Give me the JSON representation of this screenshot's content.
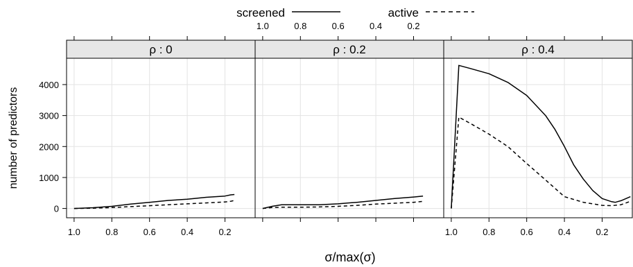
{
  "legend": {
    "position": "top",
    "items": [
      {
        "label": "screened",
        "line_style": "solid"
      },
      {
        "label": "active",
        "line_style": "dashed"
      }
    ]
  },
  "axis": {
    "xlabel": "σ/max(σ)",
    "ylabel": "number of predictors"
  },
  "chart_data": {
    "type": "line",
    "layout": "three side-by-side panels (lattice), shared y axis",
    "xlim": [
      1.04,
      0.04
    ],
    "ylim": [
      -300,
      4850
    ],
    "x_reversed": true,
    "x_ticks": [
      1.0,
      0.8,
      0.6,
      0.4,
      0.2
    ],
    "x_tick_labels": [
      "1.0",
      "0.8",
      "0.6",
      "0.4",
      "0.2"
    ],
    "y_ticks": [
      0,
      1000,
      2000,
      3000,
      4000
    ],
    "y_tick_labels": [
      "0",
      "1000",
      "2000",
      "3000",
      "4000"
    ],
    "grid": true,
    "panels": [
      {
        "strip": "ρ : 0",
        "series": [
          {
            "name": "screened",
            "line_style": "solid",
            "x": [
              1.0,
              0.9,
              0.8,
              0.7,
              0.6,
              0.5,
              0.4,
              0.3,
              0.2,
              0.17,
              0.15
            ],
            "y": [
              0,
              25,
              70,
              140,
              200,
              260,
              300,
              360,
              400,
              440,
              450
            ]
          },
          {
            "name": "active",
            "line_style": "dashed",
            "x": [
              1.0,
              0.9,
              0.8,
              0.7,
              0.6,
              0.5,
              0.4,
              0.3,
              0.2,
              0.17,
              0.15
            ],
            "y": [
              0,
              10,
              30,
              60,
              90,
              120,
              150,
              180,
              210,
              230,
              260
            ]
          }
        ]
      },
      {
        "strip": "ρ : 0.2",
        "series": [
          {
            "name": "screened",
            "line_style": "solid",
            "x": [
              1.0,
              0.95,
              0.9,
              0.8,
              0.7,
              0.6,
              0.5,
              0.4,
              0.3,
              0.2,
              0.15
            ],
            "y": [
              0,
              70,
              120,
              120,
              120,
              150,
              200,
              260,
              320,
              370,
              400
            ]
          },
          {
            "name": "active",
            "line_style": "dashed",
            "x": [
              1.0,
              0.95,
              0.9,
              0.8,
              0.7,
              0.6,
              0.5,
              0.4,
              0.3,
              0.2,
              0.15
            ],
            "y": [
              0,
              30,
              40,
              40,
              50,
              70,
              100,
              140,
              170,
              200,
              230
            ]
          }
        ]
      },
      {
        "strip": "ρ : 0.4",
        "series": [
          {
            "name": "screened",
            "line_style": "solid",
            "x": [
              1.0,
              0.96,
              0.9,
              0.8,
              0.7,
              0.6,
              0.5,
              0.45,
              0.4,
              0.35,
              0.3,
              0.25,
              0.2,
              0.15,
              0.13,
              0.1,
              0.07,
              0.05
            ],
            "y": [
              0,
              4620,
              4520,
              4350,
              4070,
              3650,
              3000,
              2550,
              2000,
              1400,
              950,
              580,
              320,
              220,
              200,
              250,
              330,
              380
            ]
          },
          {
            "name": "active",
            "line_style": "dashed",
            "x": [
              1.0,
              0.96,
              0.9,
              0.8,
              0.7,
              0.6,
              0.5,
              0.4,
              0.3,
              0.2,
              0.15,
              0.1,
              0.05
            ],
            "y": [
              0,
              2950,
              2750,
              2400,
              2000,
              1450,
              920,
              380,
              200,
              100,
              90,
              120,
              230
            ]
          }
        ]
      }
    ]
  }
}
